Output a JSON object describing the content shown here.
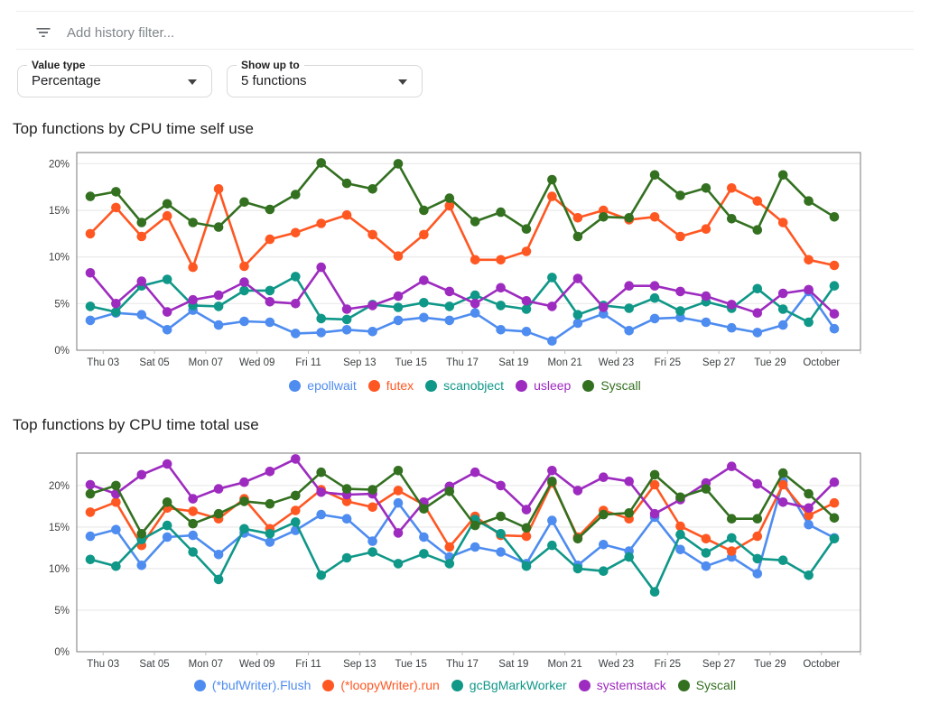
{
  "filter_bar": {
    "placeholder": "Add history filter..."
  },
  "controls": {
    "value_type": {
      "label": "Value type",
      "value": "Percentage"
    },
    "show_up_to": {
      "label": "Show up to",
      "value": "5 functions"
    }
  },
  "chart_data": [
    {
      "type": "line",
      "title": "Top functions by CPU time self use",
      "ylim": [
        0,
        21.2
      ],
      "ytick_values": [
        0,
        5,
        10,
        15,
        20
      ],
      "ytick_labels": [
        "0%",
        "5%",
        "10%",
        "15%",
        "20%"
      ],
      "x_tick_labels": [
        "Thu 03",
        "Sat 05",
        "Mon 07",
        "Wed 09",
        "Fri 11",
        "Sep 13",
        "Tue 15",
        "Thu 17",
        "Sat 19",
        "Mon 21",
        "Wed 23",
        "Fri 25",
        "Sep 27",
        "Tue 29",
        "October"
      ],
      "grid": true,
      "legend_position": "bottom",
      "series": [
        {
          "name": "epollwait",
          "color": "#4e8cf0",
          "values": [
            3.2,
            4.0,
            3.8,
            2.2,
            4.3,
            2.7,
            3.1,
            3.0,
            1.8,
            1.9,
            2.2,
            2.0,
            3.2,
            3.5,
            3.2,
            4.0,
            2.2,
            2.0,
            1.0,
            2.9,
            3.9,
            2.1,
            3.4,
            3.5,
            3.0,
            2.4,
            1.9,
            2.7,
            6.3,
            2.3
          ]
        },
        {
          "name": "futex",
          "color": "#ff5722",
          "values": [
            12.5,
            15.3,
            12.2,
            14.4,
            8.9,
            17.3,
            9.0,
            11.9,
            12.6,
            13.6,
            14.5,
            12.4,
            10.1,
            12.4,
            15.5,
            9.7,
            9.7,
            10.6,
            16.5,
            14.2,
            15.0,
            14.0,
            14.3,
            12.2,
            13.0,
            17.4,
            16.0,
            13.7,
            9.7,
            9.1
          ]
        },
        {
          "name": "scanobject",
          "color": "#0f9788",
          "values": [
            4.7,
            4.1,
            6.9,
            7.6,
            4.8,
            4.7,
            6.4,
            6.4,
            7.9,
            3.4,
            3.3,
            4.9,
            4.6,
            5.1,
            4.7,
            5.9,
            4.8,
            4.4,
            7.8,
            3.8,
            4.8,
            4.5,
            5.6,
            4.2,
            5.2,
            4.5,
            6.6,
            4.4,
            3.0,
            6.9
          ]
        },
        {
          "name": "usleep",
          "color": "#9d2bbf",
          "values": [
            8.3,
            5.0,
            7.4,
            4.1,
            5.4,
            5.9,
            7.3,
            5.2,
            5.0,
            8.9,
            4.4,
            4.8,
            5.8,
            7.5,
            6.3,
            5.0,
            6.7,
            5.3,
            4.7,
            7.7,
            4.6,
            6.9,
            6.9,
            6.3,
            5.8,
            4.9,
            4.0,
            6.1,
            6.5,
            3.9
          ]
        },
        {
          "name": "Syscall",
          "color": "#337020",
          "values": [
            16.5,
            17.0,
            13.7,
            15.7,
            13.7,
            13.2,
            15.9,
            15.1,
            16.7,
            20.1,
            17.9,
            17.3,
            20.0,
            15.0,
            16.3,
            13.8,
            14.8,
            13.0,
            18.3,
            12.2,
            14.3,
            14.2,
            18.8,
            16.6,
            17.4,
            14.1,
            12.9,
            18.8,
            16.0,
            14.3
          ]
        }
      ]
    },
    {
      "type": "line",
      "title": "Top functions by CPU time total use",
      "ylim": [
        0,
        23.9
      ],
      "ytick_values": [
        0,
        5,
        10,
        15,
        20
      ],
      "ytick_labels": [
        "0%",
        "5%",
        "10%",
        "15%",
        "20%"
      ],
      "x_tick_labels": [
        "Thu 03",
        "Sat 05",
        "Mon 07",
        "Wed 09",
        "Fri 11",
        "Sep 13",
        "Tue 15",
        "Thu 17",
        "Sat 19",
        "Mon 21",
        "Wed 23",
        "Fri 25",
        "Sep 27",
        "Tue 29",
        "October"
      ],
      "grid": true,
      "legend_position": "bottom",
      "series": [
        {
          "name": "(*bufWriter).Flush",
          "color": "#4e8cf0",
          "values": [
            13.9,
            14.7,
            10.4,
            13.8,
            14.0,
            11.7,
            14.3,
            13.2,
            14.6,
            16.5,
            16.0,
            13.3,
            17.9,
            13.8,
            11.4,
            12.6,
            12.0,
            10.6,
            15.8,
            10.4,
            12.9,
            12.1,
            16.2,
            12.3,
            10.3,
            11.4,
            9.4,
            20.5,
            15.3,
            13.7
          ]
        },
        {
          "name": "(*loopyWriter).run",
          "color": "#ff5722",
          "values": [
            16.8,
            18.0,
            12.8,
            17.3,
            16.9,
            16.0,
            18.4,
            14.8,
            17.0,
            19.5,
            18.1,
            17.4,
            19.4,
            17.7,
            12.6,
            16.3,
            14.0,
            13.9,
            20.3,
            13.8,
            17.0,
            16.0,
            20.1,
            15.1,
            13.6,
            12.1,
            13.9,
            20.1,
            16.4,
            17.9
          ]
        },
        {
          "name": "gcBgMarkWorker",
          "color": "#0f9788",
          "values": [
            11.1,
            10.3,
            13.5,
            15.2,
            12.0,
            8.7,
            14.8,
            14.2,
            15.6,
            9.2,
            11.3,
            12.0,
            10.6,
            11.8,
            10.6,
            15.9,
            14.2,
            10.3,
            12.8,
            10.0,
            9.7,
            11.4,
            7.2,
            14.1,
            11.9,
            13.7,
            11.2,
            11.0,
            9.2,
            13.6
          ]
        },
        {
          "name": "systemstack",
          "color": "#9d2bbf",
          "values": [
            20.1,
            19.0,
            21.3,
            22.6,
            18.4,
            19.6,
            20.4,
            21.7,
            23.2,
            19.2,
            18.9,
            19.0,
            14.3,
            18.0,
            19.9,
            21.6,
            20.0,
            17.1,
            21.8,
            19.4,
            21.0,
            20.5,
            16.6,
            18.3,
            20.3,
            22.3,
            20.2,
            18.0,
            17.3,
            20.4
          ]
        },
        {
          "name": "Syscall",
          "color": "#337020",
          "values": [
            19.0,
            20.0,
            14.2,
            18.0,
            15.4,
            16.6,
            18.1,
            17.8,
            18.8,
            21.6,
            19.6,
            19.5,
            21.8,
            17.2,
            19.3,
            15.2,
            16.3,
            14.9,
            20.5,
            13.6,
            16.5,
            16.7,
            21.3,
            18.6,
            19.6,
            16.0,
            16.0,
            21.5,
            19.0,
            16.1
          ]
        }
      ]
    }
  ]
}
